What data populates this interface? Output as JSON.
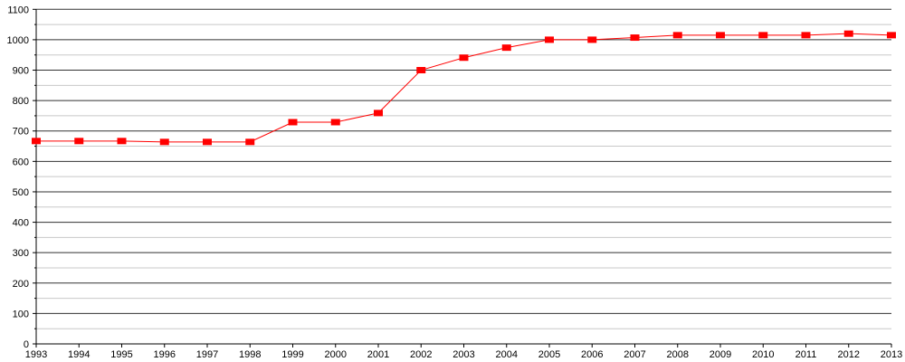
{
  "chart_data": {
    "type": "line",
    "title": "",
    "xlabel": "",
    "ylabel": "",
    "x": [
      "1993",
      "1994",
      "1995",
      "1996",
      "1997",
      "1998",
      "1999",
      "2000",
      "2001",
      "2002",
      "2003",
      "2004",
      "2005",
      "2006",
      "2007",
      "2008",
      "2009",
      "2010",
      "2011",
      "2012",
      "2013"
    ],
    "series": [
      {
        "values": [
          667,
          667,
          667,
          664,
          664,
          664,
          729,
          729,
          759,
          900,
          941,
          974,
          1000,
          1000,
          1007,
          1015,
          1015,
          1015,
          1015,
          1020,
          1015
        ],
        "color": "#ff0000"
      }
    ],
    "ylim": [
      0,
      1100
    ],
    "yticks": [
      "0",
      "100",
      "200",
      "300",
      "400",
      "500",
      "600",
      "700",
      "800",
      "900",
      "1000",
      "1100"
    ],
    "grid": true,
    "legend": "none"
  }
}
